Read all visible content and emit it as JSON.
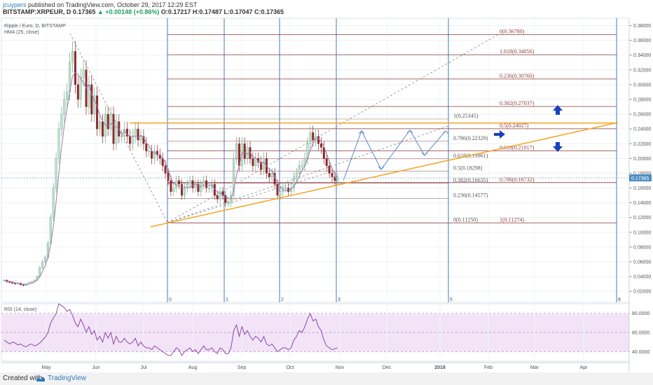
{
  "header": {
    "author": "jcuypers",
    "published": "published on TradingView.com, October 29, 2017 12:29 EST",
    "symbol_line_prefix": "BITSTAMP:XRPEUR, D",
    "price": "0.17365",
    "change": "▲ +0.00148 (+0.86%)",
    "ohlc": "O:0.17217 H:0.17487 L:0.17047 C:0.17365"
  },
  "legend": {
    "title": "Ripple / Euro, D, BITSTAMP",
    "hma": "HMA (25, close)"
  },
  "rsi": {
    "label": "RSI (14, close)"
  },
  "footer": {
    "created_with": "Created with",
    "brand": "TradingView"
  },
  "colors": {
    "candle_up": "#c0e0cc",
    "candle_down": "#8b2a2a",
    "hma": "#9a7ab5",
    "fib": "#8b3a3a",
    "time_lines": "#4b77be",
    "trendline": "#f5a623",
    "projection": "#5a8ad0",
    "arrows": "#1a3fc0",
    "rsi_line": "#8a4aa8",
    "rsi_fill": "#f2e3f7",
    "price_tag": "#4b8ec2"
  },
  "chart_data": {
    "type": "candlestick",
    "x_axis_months": [
      "May",
      "Jun",
      "Jul",
      "Aug",
      "Sep",
      "Oct",
      "Nov",
      "Dec",
      "2018",
      "Feb",
      "Mar",
      "Apr"
    ],
    "y_ticks": [
      "0.38000",
      "0.36000",
      "0.34000",
      "0.32000",
      "0.30000",
      "0.28000",
      "0.26000",
      "0.24000",
      "0.22000",
      "0.20000",
      "0.18000",
      "0.16000",
      "0.14000",
      "0.12000",
      "0.10000",
      "0.08000",
      "0.06000",
      "0.04000",
      "0.02000"
    ],
    "ylim": [
      0.005,
      0.39
    ],
    "last_price": "0.17365",
    "rsi_ticks": [
      "80.0000",
      "60.0000",
      "40.0000"
    ],
    "rsi_ylim": [
      30,
      90
    ],
    "time_zone_labels": [
      "0",
      "1",
      "2",
      "3",
      "5",
      "8"
    ],
    "fib_retracement_1": [
      {
        "label": "0(0.36780)",
        "value": 0.3678
      },
      {
        "label": "1.618(0.34056)",
        "value": 0.34056
      },
      {
        "label": "0.236(0.30760)",
        "value": 0.3076
      },
      {
        "label": "0.382(0.27037)",
        "value": 0.27037
      },
      {
        "label": "0.5(0.24027)",
        "value": 0.24027
      },
      {
        "label": "0.618(0.21017)",
        "value": 0.21017
      },
      {
        "label": "0.786(0.16732)",
        "value": 0.16732
      },
      {
        "label": "1(0.11274)",
        "value": 0.11274
      }
    ],
    "fib_retracement_2": [
      {
        "label": "1(0.25345)",
        "value": 0.25345
      },
      {
        "label": "0.786(0.22329)",
        "value": 0.22329
      },
      {
        "label": "0.618(0.19961)",
        "value": 0.19961
      },
      {
        "label": "0.5(0.18298)",
        "value": 0.18298
      },
      {
        "label": "0.382(0.16635)",
        "value": 0.16635
      },
      {
        "label": "0.236(0.14577)",
        "value": 0.14577
      },
      {
        "label": "0(0.11250)",
        "value": 0.1125
      }
    ],
    "close_series": [
      0.035,
      0.033,
      0.032,
      0.031,
      0.03,
      0.031,
      0.029,
      0.028,
      0.03,
      0.032,
      0.033,
      0.035,
      0.04,
      0.052,
      0.06,
      0.066,
      0.085,
      0.12,
      0.16,
      0.2,
      0.24,
      0.26,
      0.28,
      0.29,
      0.33,
      0.345,
      0.3,
      0.28,
      0.31,
      0.32,
      0.27,
      0.3,
      0.26,
      0.285,
      0.24,
      0.25,
      0.23,
      0.26,
      0.24,
      0.26,
      0.22,
      0.25,
      0.23,
      0.23,
      0.24,
      0.23,
      0.22,
      0.23,
      0.24,
      0.225,
      0.23,
      0.22,
      0.21,
      0.21,
      0.2,
      0.21,
      0.205,
      0.2,
      0.19,
      0.18,
      0.17,
      0.155,
      0.16,
      0.17,
      0.165,
      0.15,
      0.16,
      0.165,
      0.17,
      0.16,
      0.165,
      0.155,
      0.165,
      0.17,
      0.16,
      0.16,
      0.165,
      0.15,
      0.145,
      0.155,
      0.15,
      0.14,
      0.14,
      0.15,
      0.2,
      0.22,
      0.19,
      0.22,
      0.2,
      0.215,
      0.2,
      0.19,
      0.2,
      0.195,
      0.185,
      0.2,
      0.18,
      0.175,
      0.18,
      0.165,
      0.15,
      0.155,
      0.16,
      0.16,
      0.155,
      0.16,
      0.175,
      0.18,
      0.19,
      0.19,
      0.2,
      0.22,
      0.235,
      0.225,
      0.23,
      0.22,
      0.215,
      0.2,
      0.19,
      0.18,
      0.175,
      0.17,
      0.1737
    ],
    "rsi_series": [
      52,
      50,
      48,
      50,
      49,
      47,
      48,
      46,
      45,
      47,
      48,
      46,
      47,
      49,
      52,
      55,
      60,
      70,
      75,
      80,
      90,
      88,
      86,
      82,
      84,
      78,
      70,
      66,
      74,
      68,
      60,
      66,
      58,
      62,
      52,
      56,
      50,
      60,
      54,
      60,
      48,
      56,
      50,
      50,
      54,
      50,
      48,
      50,
      54,
      46,
      50,
      46,
      44,
      44,
      42,
      46,
      44,
      42,
      40,
      38,
      36,
      36,
      40,
      44,
      42,
      36,
      40,
      42,
      44,
      40,
      42,
      38,
      42,
      46,
      42,
      42,
      44,
      40,
      38,
      44,
      42,
      38,
      38,
      44,
      62,
      68,
      56,
      66,
      58,
      62,
      56,
      52,
      56,
      54,
      50,
      56,
      48,
      46,
      48,
      44,
      40,
      42,
      44,
      44,
      42,
      44,
      52,
      56,
      62,
      60,
      66,
      74,
      80,
      72,
      74,
      66,
      62,
      52,
      46,
      44,
      42,
      43,
      44
    ]
  }
}
